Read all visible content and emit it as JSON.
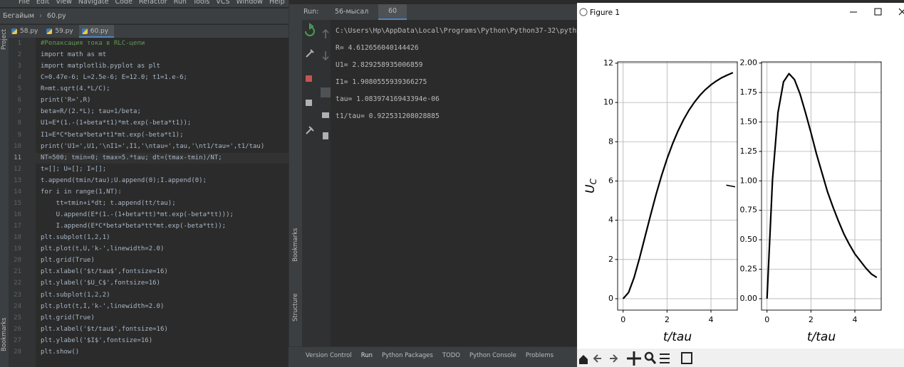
{
  "menu": [
    "File",
    "Edit",
    "View",
    "Navigate",
    "Code",
    "Refactor",
    "Run",
    "Tools",
    "VCS",
    "Window",
    "Help",
    "Бегайн"
  ],
  "breadcrumb": [
    "Бегайым",
    "60.py"
  ],
  "editor_tabs": [
    "58.py",
    "59.py",
    "60.py"
  ],
  "side_labels": {
    "project": "Project",
    "bookmarks": "Bookmarks",
    "run_bookmarks": "Bookmarks",
    "structure": "Structure"
  },
  "editor": {
    "lines": [
      {
        "number": 1,
        "code": "#Релаксация тока в RLC-цепи"
      },
      {
        "number": 2,
        "code": "import math as mt"
      },
      {
        "number": 3,
        "code": "import matplotlib.pyplot as plt"
      },
      {
        "number": 4,
        "code": "C=0.47e-6; L=2.5e-6; E=12.0; t1=1.e-6;"
      },
      {
        "number": 5,
        "code": "R=mt.sqrt(4.*L/C);"
      },
      {
        "number": 6,
        "code": "print('R=',R)"
      },
      {
        "number": 7,
        "code": "beta=R/(2.*L); tau=1/beta;"
      },
      {
        "number": 8,
        "code": "U1=E*(1.-(1+beta*t1)*mt.exp(-beta*t1));"
      },
      {
        "number": 9,
        "code": "I1=E*C*beta*beta*t1*mt.exp(-beta*t1);"
      },
      {
        "number": 10,
        "code": "print('U1=',U1,'\\nI1=',I1,'\\ntau=',tau,'\\nt1/tau=',t1/tau)"
      },
      {
        "number": 11,
        "code": "NT=500; tmin=0; tmax=5.*tau; dt=(tmax-tmin)/NT;"
      },
      {
        "number": 12,
        "code": "t=[]; U=[]; I=[];"
      },
      {
        "number": 13,
        "code": "t.append(tmin/tau);U.append(0);I.append(0);"
      },
      {
        "number": 14,
        "code": "for i in range(1,NT):"
      },
      {
        "number": 15,
        "code": "    tt=tmin+i*dt; t.append(tt/tau);"
      },
      {
        "number": 16,
        "code": "    U.append(E*(1.-(1+beta*tt)*mt.exp(-beta*tt)));"
      },
      {
        "number": 17,
        "code": "    I.append(E*C*beta*beta*tt*mt.exp(-beta*tt));"
      },
      {
        "number": 18,
        "code": "plt.subplot(1,2,1)"
      },
      {
        "number": 19,
        "code": "plt.plot(t,U,'k-',linewidth=2.0)"
      },
      {
        "number": 20,
        "code": "plt.grid(True)"
      },
      {
        "number": 21,
        "code": "plt.xlabel('$t/tau$',fontsize=16)"
      },
      {
        "number": 22,
        "code": "plt.ylabel('$U_C$',fontsize=16)"
      },
      {
        "number": 23,
        "code": "plt.subplot(1,2,2)"
      },
      {
        "number": 24,
        "code": "plt.plot(t,I,'k-',linewidth=2.0)"
      },
      {
        "number": 25,
        "code": "plt.grid(True)"
      },
      {
        "number": 26,
        "code": "plt.xlabel('$t/tau$',fontsize=16)"
      },
      {
        "number": 27,
        "code": "plt.ylabel('$I$',fontsize=16)"
      },
      {
        "number": 28,
        "code": "plt.show()"
      }
    ]
  },
  "run": {
    "label": "Run:",
    "tabs": [
      "56-мысал",
      "60"
    ],
    "output": [
      "C:\\Users\\Hp\\AppData\\Local\\Programs\\Python\\Python37-32\\python.exe",
      "R= 4.612656040144426",
      "U1= 2.829258935006859",
      "I1= 1.9080555939366275",
      "tau= 1.08397416943394e-06",
      "t1/tau= 0.922531208028885"
    ]
  },
  "bottom_bar": [
    "Version Control",
    "Run",
    "Python Packages",
    "TODO",
    "Python Console",
    "Problems"
  ],
  "figure": {
    "title": "Figure 1"
  },
  "chart_data": [
    {
      "type": "line",
      "xlabel": "t/tau",
      "ylabel": {
        "text": "U",
        "subscript": "C"
      },
      "color": "#000000",
      "grid": true,
      "x": [
        0,
        0.25,
        0.5,
        0.75,
        1,
        1.25,
        1.5,
        1.75,
        2,
        2.25,
        2.5,
        2.75,
        3,
        3.25,
        3.5,
        3.75,
        4,
        4.25,
        4.5,
        4.75,
        5
      ],
      "values": [
        0,
        0.32,
        1.08,
        2.08,
        3.17,
        4.26,
        5.31,
        6.27,
        7.13,
        7.89,
        8.55,
        9.12,
        9.61,
        10.02,
        10.37,
        10.66,
        10.9,
        11.1,
        11.27,
        11.4,
        11.52
      ],
      "xlim": [
        -0.25,
        5.2
      ],
      "xticks": [
        0,
        2,
        4
      ],
      "ylim": [
        -0.58,
        12.07
      ],
      "yticks": [
        0,
        2,
        4,
        6,
        8,
        10,
        12
      ]
    },
    {
      "type": "line",
      "xlabel": "t/tau",
      "ylabel": {
        "text": "I"
      },
      "color": "#000000",
      "grid": true,
      "x": [
        0,
        0.25,
        0.5,
        0.75,
        1,
        1.25,
        1.5,
        1.75,
        2,
        2.25,
        2.5,
        2.75,
        3,
        3.25,
        3.5,
        3.75,
        4,
        4.25,
        4.5,
        4.75,
        5
      ],
      "values": [
        0,
        1.01,
        1.58,
        1.84,
        1.91,
        1.86,
        1.74,
        1.58,
        1.41,
        1.23,
        1.07,
        0.91,
        0.78,
        0.66,
        0.55,
        0.46,
        0.38,
        0.32,
        0.26,
        0.21,
        0.18
      ],
      "xlim": [
        -0.25,
        5.2
      ],
      "xticks": [
        0,
        2,
        4
      ],
      "ylim": [
        -0.097,
        2.01
      ],
      "yticks": [
        {
          "value": 0,
          "label": "0.00"
        },
        {
          "value": 0.25,
          "label": "0.25"
        },
        {
          "value": 0.5,
          "label": "0.50"
        },
        {
          "value": 0.75,
          "label": "0.75"
        },
        {
          "value": 1,
          "label": "1.00"
        },
        {
          "value": 1.25,
          "label": "1.25"
        },
        {
          "value": 1.5,
          "label": "1.50"
        },
        {
          "value": 1.75,
          "label": "1.75"
        },
        {
          "value": 2,
          "label": "2.00"
        }
      ]
    }
  ]
}
